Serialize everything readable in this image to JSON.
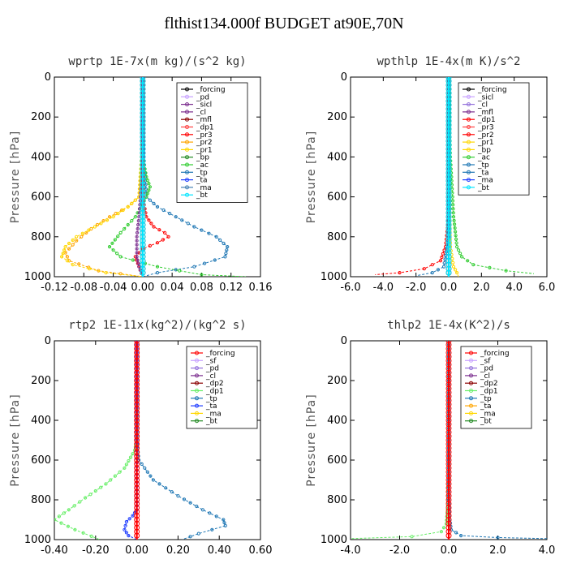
{
  "title": "flthist134.000f  BUDGET at90E,70N",
  "chart_data": [
    {
      "type": "line",
      "title": "wprtp  1E-7x(m kg)/(s^2 kg)",
      "ylabel": "Pressure [hPa]",
      "xlim": [
        -0.12,
        0.16
      ],
      "ylim": [
        1000,
        0
      ],
      "xticks": [
        "-0.12",
        "-0.08",
        "-0.04",
        "0.00",
        "0.04",
        "0.08",
        "0.12",
        "0.16"
      ],
      "yticks": [
        "0",
        "200",
        "400",
        "600",
        "800",
        "1000"
      ],
      "legend": [
        "_forcing",
        "_pd",
        "_sicl",
        "_cl",
        "_mfl",
        "_dp1",
        "_pr3",
        "_pr2",
        "_pr1",
        "_bp",
        "_ac",
        "_tp",
        "_ta",
        "_ma",
        "_bt"
      ],
      "series": [
        {
          "name": "_forcing",
          "color": "#000000",
          "x": [
            0,
            0,
            0,
            0,
            0,
            0,
            0,
            0,
            0,
            0,
            0,
            0
          ],
          "y": [
            0,
            100,
            200,
            300,
            400,
            500,
            600,
            700,
            800,
            900,
            960,
            1000
          ]
        },
        {
          "name": "_pr2",
          "color": "#ffa500",
          "x": [
            0,
            0,
            0,
            -0.005,
            -0.02,
            -0.045,
            -0.07,
            -0.09,
            -0.105,
            -0.1,
            -0.06,
            0
          ],
          "y": [
            0,
            200,
            400,
            600,
            650,
            700,
            760,
            820,
            880,
            920,
            970,
            1000
          ]
        },
        {
          "name": "_pr1",
          "color": "#ffd700",
          "x": [
            0,
            0,
            -0.005,
            -0.02,
            -0.04,
            -0.065,
            -0.09,
            -0.105,
            -0.11,
            -0.095,
            -0.05,
            0
          ],
          "y": [
            0,
            300,
            600,
            650,
            700,
            750,
            800,
            850,
            900,
            940,
            980,
            1000
          ]
        },
        {
          "name": "_tp",
          "color": "#1f77b4",
          "x": [
            0,
            0,
            0.005,
            0.02,
            0.045,
            0.07,
            0.1,
            0.115,
            0.112,
            0.07,
            0.02,
            0
          ],
          "y": [
            0,
            300,
            600,
            650,
            700,
            750,
            800,
            850,
            900,
            950,
            980,
            1000
          ]
        },
        {
          "name": "_ac",
          "color": "#32cd32",
          "x": [
            0,
            0,
            0.005,
            0.01,
            0.005,
            -0.01,
            -0.03,
            -0.045,
            -0.03,
            0.02,
            0.08,
            0.14
          ],
          "y": [
            0,
            400,
            500,
            550,
            600,
            700,
            780,
            850,
            900,
            950,
            990,
            1000
          ]
        },
        {
          "name": "_pr3",
          "color": "#ff0000",
          "x": [
            0,
            0,
            0.005,
            0.015,
            0.03,
            0.035,
            0.02,
            0.0,
            -0.01,
            -0.005,
            0
          ],
          "y": [
            0,
            600,
            700,
            750,
            780,
            800,
            830,
            860,
            900,
            950,
            1000
          ]
        },
        {
          "name": "_sicl",
          "color": "#7b2d8e",
          "x": [
            0,
            0,
            0,
            -0.003,
            -0.005,
            -0.008,
            -0.008,
            -0.005,
            0
          ],
          "y": [
            0,
            200,
            400,
            600,
            700,
            800,
            900,
            950,
            1000
          ]
        },
        {
          "name": "_bt",
          "color": "#00e5ff",
          "x": [
            0,
            0,
            0,
            0,
            0,
            0
          ],
          "y": [
            0,
            200,
            400,
            600,
            800,
            1000
          ]
        }
      ]
    },
    {
      "type": "line",
      "title": "wpthlp  1E-4x(m K)/s^2",
      "ylabel": "Pressure [hPa]",
      "xlim": [
        -6.0,
        6.0
      ],
      "ylim": [
        1000,
        0
      ],
      "xticks": [
        "-6.0",
        "-4.0",
        "-2.0",
        "0.0",
        "2.0",
        "4.0",
        "6.0"
      ],
      "yticks": [
        "0",
        "200",
        "400",
        "600",
        "800",
        "1000"
      ],
      "legend": [
        "_forcing",
        "_sicl",
        "_cl",
        "_mfl",
        "_dp1",
        "_pr3",
        "_pr2",
        "_pr1",
        "_bp",
        "_ac",
        "_tp",
        "_ta",
        "_ma",
        "_bt"
      ],
      "series": [
        {
          "name": "_forcing",
          "color": "#000000",
          "x": [
            0,
            0,
            0,
            0,
            0,
            0
          ],
          "y": [
            0,
            200,
            400,
            600,
            800,
            1000
          ]
        },
        {
          "name": "_dp1",
          "color": "#ff0000",
          "x": [
            0,
            0,
            0,
            -0.2,
            -0.5,
            -1.5,
            -3.0,
            -4.5
          ],
          "y": [
            0,
            400,
            700,
            850,
            920,
            960,
            980,
            990
          ]
        },
        {
          "name": "_ac",
          "color": "#32cd32",
          "x": [
            0,
            0.1,
            0.3,
            0.5,
            0.8,
            1.5,
            3.5,
            5.2
          ],
          "y": [
            0,
            400,
            700,
            850,
            900,
            940,
            970,
            985
          ]
        },
        {
          "name": "_pr1",
          "color": "#ffd700",
          "x": [
            0,
            0,
            0.1,
            0.3,
            0.5,
            0.6
          ],
          "y": [
            0,
            600,
            850,
            950,
            980,
            1000
          ]
        },
        {
          "name": "_tp",
          "color": "#1f77b4",
          "x": [
            0,
            0,
            -0.3,
            -1.0,
            -2.0
          ],
          "y": [
            0,
            800,
            950,
            980,
            995
          ]
        },
        {
          "name": "_bt",
          "color": "#00e5ff",
          "x": [
            0,
            0,
            0,
            0
          ],
          "y": [
            0,
            300,
            700,
            1000
          ]
        }
      ]
    },
    {
      "type": "line",
      "title": "rtp2  1E-11x(kg^2)/(kg^2 s)",
      "ylabel": "Pressure [hPa]",
      "xlim": [
        -0.4,
        0.6
      ],
      "ylim": [
        1000,
        0
      ],
      "xticks": [
        "-0.40",
        "-0.20",
        "0.00",
        "0.20",
        "0.40",
        "0.60"
      ],
      "yticks": [
        "0",
        "200",
        "400",
        "600",
        "800",
        "1000"
      ],
      "legend": [
        "_forcing",
        "_sf",
        "_pd",
        "_cl",
        "_dp2",
        "_dp1",
        "_tp",
        "_ta",
        "_ma",
        "_bt"
      ],
      "series": [
        {
          "name": "_dp1",
          "color": "#66ee66",
          "x": [
            0,
            0,
            -0.01,
            -0.06,
            -0.15,
            -0.25,
            -0.33,
            -0.4,
            -0.3,
            -0.18
          ],
          "y": [
            0,
            500,
            550,
            640,
            720,
            790,
            850,
            900,
            950,
            1000
          ]
        },
        {
          "name": "_tp",
          "color": "#1f77b4",
          "x": [
            0,
            0,
            0.01,
            0.08,
            0.2,
            0.32,
            0.42,
            0.43,
            0.3,
            0.22
          ],
          "y": [
            0,
            500,
            600,
            700,
            780,
            850,
            900,
            930,
            970,
            1000
          ]
        },
        {
          "name": "_ta",
          "color": "#1e3cff",
          "x": [
            0,
            0,
            -0.02,
            -0.05,
            -0.06,
            -0.04,
            0
          ],
          "y": [
            0,
            850,
            880,
            910,
            950,
            980,
            1000
          ]
        },
        {
          "name": "_forcing",
          "color": "#ff0000",
          "x": [
            0,
            0,
            0,
            0,
            0,
            0,
            0
          ],
          "y": [
            0,
            200,
            400,
            600,
            800,
            900,
            1000
          ]
        }
      ]
    },
    {
      "type": "line",
      "title": "thlp2  1E-4x(K^2)/s",
      "ylabel": "Pressure [hPa]",
      "xlim": [
        -4.0,
        4.0
      ],
      "ylim": [
        1000,
        0
      ],
      "xticks": [
        "-4.0",
        "-2.0",
        "0.0",
        "2.0",
        "4.0"
      ],
      "yticks": [
        "0",
        "200",
        "400",
        "600",
        "800",
        "1000"
      ],
      "legend": [
        "_forcing",
        "_sf",
        "_pd",
        "_cl",
        "_dp2",
        "_dp1",
        "_tp",
        "_ta",
        "_ma",
        "_bt"
      ],
      "series": [
        {
          "name": "_dp1",
          "color": "#66ee66",
          "x": [
            0,
            0,
            -0.05,
            -0.1,
            -0.3,
            -1.5,
            -4.0
          ],
          "y": [
            0,
            700,
            850,
            920,
            960,
            985,
            995
          ]
        },
        {
          "name": "_tp",
          "color": "#1f77b4",
          "x": [
            0,
            0,
            0.05,
            0.1,
            0.5,
            2.0,
            4.0
          ],
          "y": [
            0,
            800,
            900,
            950,
            980,
            990,
            995
          ]
        },
        {
          "name": "_forcing",
          "color": "#ff0000",
          "x": [
            0,
            0,
            0,
            0,
            0,
            0
          ],
          "y": [
            0,
            200,
            400,
            600,
            800,
            1000
          ]
        }
      ]
    }
  ]
}
